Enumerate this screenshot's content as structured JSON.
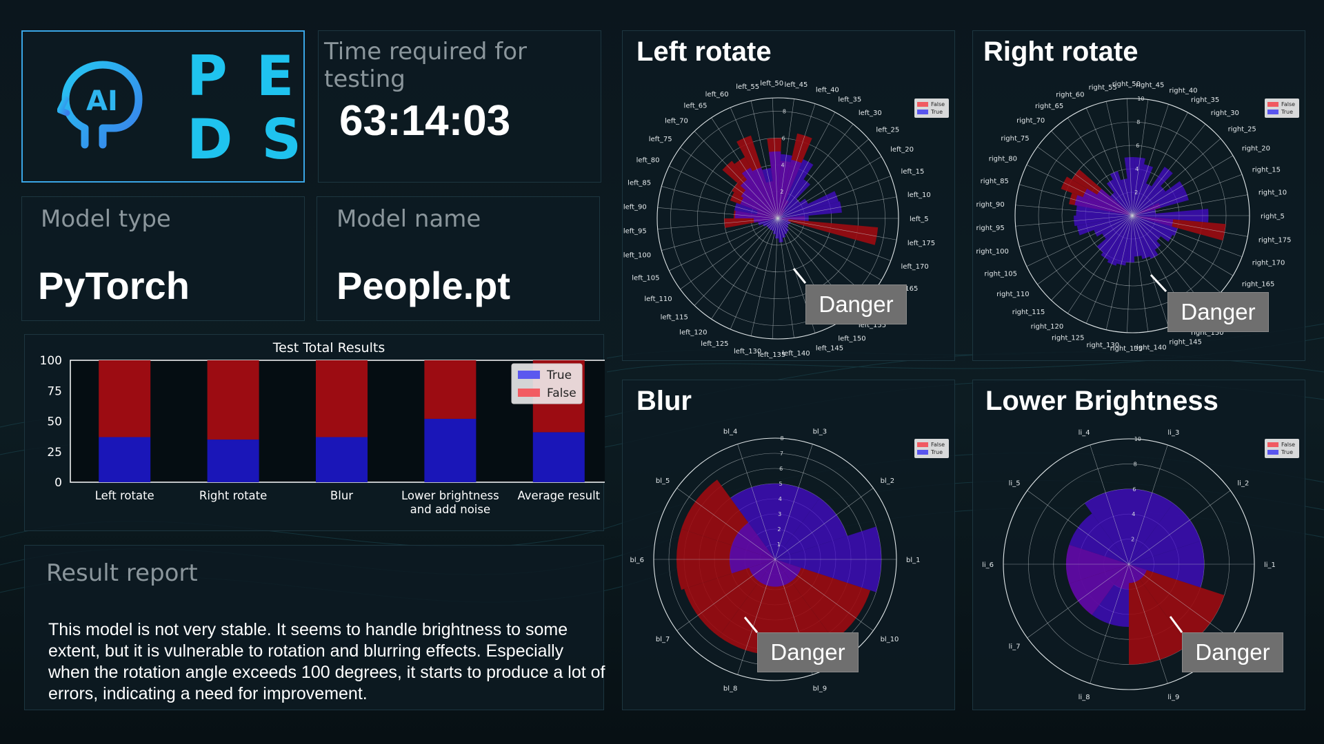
{
  "logo": {
    "letters_top": "PE",
    "letters_bottom": "DS",
    "icon_text": "AI"
  },
  "timer": {
    "label": "Time required for testing",
    "value": "63:14:03"
  },
  "model_type": {
    "label": "Model type",
    "value": "PyTorch"
  },
  "model_name": {
    "label": "Model name",
    "value": "People.pt"
  },
  "bar_chart": {
    "title": "Test Total Results",
    "legend": [
      "True",
      "False"
    ],
    "y_ticks": [
      "100",
      "75",
      "50",
      "25",
      "0"
    ],
    "categories": [
      "Left rotate",
      "Right rotate",
      "Blur",
      "Lower brightness",
      "Average result"
    ],
    "category_line2": [
      "",
      "",
      "",
      "and add noise",
      ""
    ]
  },
  "report": {
    "title": "Result report",
    "text": "This model is not very stable. It seems to handle brightness to some extent, but it is vulnerable to rotation and blurring effects. Especially when the rotation angle exceeds 100 degrees, it starts to produce a lot of errors, indicating a need for improvement."
  },
  "polar_panels": {
    "left": {
      "title": "Left rotate",
      "danger": "Danger",
      "legend": [
        "False",
        "True"
      ],
      "ticks": [
        "2",
        "4",
        "6",
        "8"
      ],
      "labels": [
        "left_5",
        "left_10",
        "left_15",
        "left_20",
        "left_25",
        "left_30",
        "left_35",
        "left_40",
        "left_45",
        "left_50",
        "left_55",
        "left_60",
        "left_65",
        "left_70",
        "left_75",
        "left_80",
        "left_85",
        "left_90",
        "left_95",
        "left_100",
        "left_105",
        "left_110",
        "left_115",
        "left_120",
        "left_125",
        "left_130",
        "left_135",
        "left_140",
        "left_145",
        "left_150",
        "left_155",
        "left_160",
        "left_165",
        "left_170",
        "left_175"
      ]
    },
    "right": {
      "title": "Right rotate",
      "danger": "Danger",
      "legend": [
        "False",
        "True"
      ],
      "ticks": [
        "2",
        "4",
        "6",
        "8",
        "10"
      ],
      "labels": [
        "right_5",
        "right_10",
        "right_15",
        "right_20",
        "right_25",
        "right_30",
        "right_35",
        "right_40",
        "right_45",
        "right_50",
        "right_55",
        "right_60",
        "right_65",
        "right_70",
        "right_75",
        "right_80",
        "right_85",
        "right_90",
        "right_95",
        "right_100",
        "right_105",
        "right_110",
        "right_115",
        "right_120",
        "right_125",
        "right_130",
        "right_135",
        "right_140",
        "right_145",
        "right_150",
        "right_155",
        "right_160",
        "right_165",
        "right_170",
        "right_175"
      ]
    },
    "blur": {
      "title": "Blur",
      "danger": "Danger",
      "legend": [
        "False",
        "True"
      ],
      "ticks": [
        "1",
        "2",
        "3",
        "4",
        "5",
        "6",
        "7",
        "8"
      ],
      "labels": [
        "bl_1",
        "bl_2",
        "bl_3",
        "bl_4",
        "bl_5",
        "bl_6",
        "bl_7",
        "bl_8",
        "bl_9",
        "bl_10"
      ]
    },
    "bright": {
      "title": "Lower Brightness",
      "danger": "Danger",
      "legend": [
        "False",
        "True"
      ],
      "ticks": [
        "2",
        "4",
        "6",
        "8",
        "10"
      ],
      "labels": [
        "li_1",
        "li_2",
        "li_3",
        "li_4",
        "li_5",
        "li_6",
        "li_7",
        "li_8",
        "li_9",
        "li_10"
      ]
    }
  },
  "chart_data": [
    {
      "type": "bar",
      "title": "Test Total Results",
      "categories": [
        "Left rotate",
        "Right rotate",
        "Blur",
        "Lower brightness and add noise",
        "Average result"
      ],
      "series": [
        {
          "name": "True",
          "values": [
            37,
            35,
            37,
            52,
            41
          ]
        },
        {
          "name": "False",
          "values": [
            63,
            65,
            63,
            48,
            59
          ]
        }
      ],
      "ylim": [
        0,
        100
      ],
      "stacked": true,
      "legend": "top-right",
      "colors": {
        "True": "#1a16b8",
        "False": "#9c0c12"
      }
    },
    {
      "type": "polar",
      "title": "Left rotate",
      "rmax": 9,
      "series": [
        {
          "name": "False",
          "values": [
            2.0,
            0,
            0,
            0,
            0.5,
            0.8,
            1.5,
            6.5,
            4.3,
            6.0,
            2.8,
            6.5,
            5.2,
            5.5,
            4.0,
            3.8,
            1.6,
            3.3,
            4.0,
            0,
            0,
            0,
            0,
            0,
            0,
            0,
            0,
            0,
            0,
            0,
            0,
            0,
            0,
            0,
            7.5
          ]
        },
        {
          "name": "True",
          "values": [
            2.3,
            4.8,
            4.7,
            2.5,
            2.0,
            3.5,
            4.8,
            4.5,
            4.8,
            5.0,
            3.8,
            4.0,
            4.3,
            3.7,
            3.2,
            3.0,
            3.3,
            3.2,
            1.8,
            1.5,
            1.2,
            1.0,
            1.0,
            1.0,
            1.0,
            1.2,
            1.5,
            1.8,
            1.5,
            1.3,
            1.2,
            1.0,
            0.9,
            1.0,
            0.8
          ]
        }
      ]
    },
    {
      "type": "polar",
      "title": "Right rotate",
      "rmax": 10,
      "series": [
        {
          "name": "False",
          "values": [
            0.5,
            0,
            2.5,
            0,
            0,
            0,
            0,
            0,
            0,
            0,
            0,
            0,
            0,
            0,
            6.0,
            6.5,
            5.5,
            0,
            0,
            0,
            0,
            0,
            0,
            0,
            0,
            0,
            0,
            0,
            0,
            0,
            0,
            0,
            0,
            0,
            8.0
          ]
        },
        {
          "name": "True",
          "values": [
            6.5,
            2.0,
            5.0,
            5.0,
            3.5,
            5.0,
            3.0,
            4.5,
            5.0,
            5.0,
            3.2,
            4.0,
            3.5,
            2.5,
            3.5,
            4.5,
            5.0,
            4.8,
            5.0,
            4.8,
            3.5,
            3.0,
            4.0,
            4.3,
            4.5,
            4.3,
            4.0,
            3.5,
            3.8,
            4.0,
            3.5,
            3.0,
            3.8,
            4.0,
            3.5
          ]
        }
      ]
    },
    {
      "type": "polar",
      "title": "Blur",
      "rmax": 8,
      "series": [
        {
          "name": "False",
          "values": [
            0,
            0,
            0,
            0,
            6.5,
            6.5,
            6.3,
            6.3,
            6.6,
            6.6
          ]
        },
        {
          "name": "True",
          "values": [
            7.0,
            5.0,
            5.0,
            5.0,
            3.0,
            3.0,
            1.8,
            1.8,
            1.8,
            1.8
          ]
        }
      ]
    },
    {
      "type": "polar",
      "title": "Lower Brightness",
      "rmax": 10,
      "series": [
        {
          "name": "False",
          "values": [
            0,
            0,
            0,
            0,
            0,
            5.0,
            5.0,
            2.0,
            8.0,
            8.0
          ]
        },
        {
          "name": "True",
          "values": [
            6.0,
            6.0,
            6.0,
            6.0,
            5.0,
            5.0,
            5.0,
            5.0,
            1.5,
            1.5
          ]
        }
      ]
    }
  ]
}
